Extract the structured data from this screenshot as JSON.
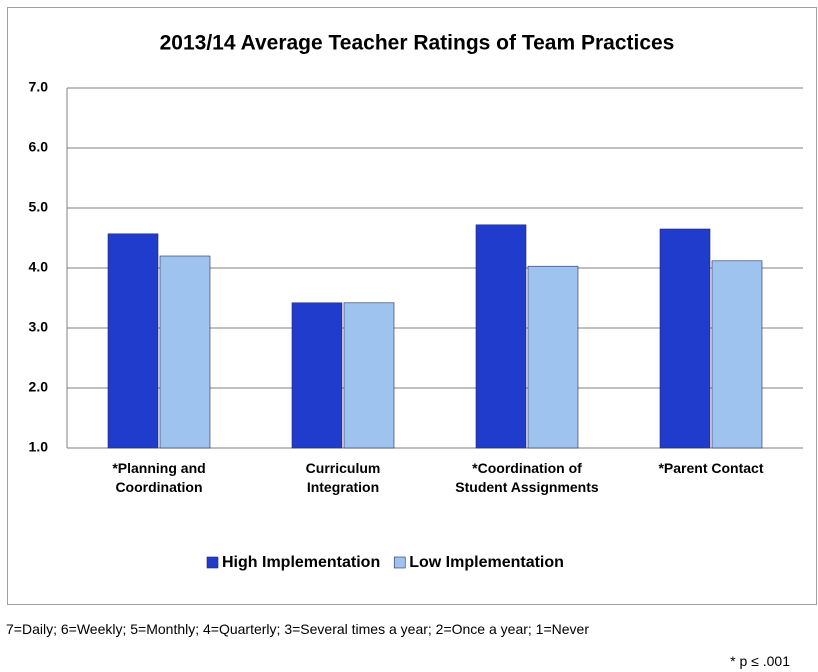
{
  "chart_data": {
    "type": "bar",
    "title": "2013/14 Average Teacher Ratings of Team Practices",
    "categories": [
      "*Planning and Coordination",
      "Curriculum Integration",
      "*Coordination of Student Assignments",
      "*Parent Contact"
    ],
    "series": [
      {
        "name": "High Implementation",
        "color": "#1f3ccc",
        "values": [
          4.57,
          3.42,
          4.72,
          4.65
        ]
      },
      {
        "name": "Low Implementation",
        "color": "#9dc3ee",
        "values": [
          4.2,
          3.42,
          4.03,
          4.12
        ]
      }
    ],
    "ylim": [
      1,
      7
    ],
    "yticks": [
      {
        "value": 1,
        "label": "1.0"
      },
      {
        "value": 2,
        "label": "2.0"
      },
      {
        "value": 3,
        "label": "3.0"
      },
      {
        "value": 4,
        "label": "4.0"
      },
      {
        "value": 5,
        "label": "5.0"
      },
      {
        "value": 6,
        "label": "6.0"
      },
      {
        "value": 7,
        "label": "7.0"
      }
    ],
    "grid": true,
    "legend": "bottom",
    "notes": [
      "7=Daily; 6=Weekly; 5=Monthly; 4=Quarterly; 3=Several times a year; 2=Once a year; 1=Never",
      "* p ≤ .001"
    ]
  }
}
